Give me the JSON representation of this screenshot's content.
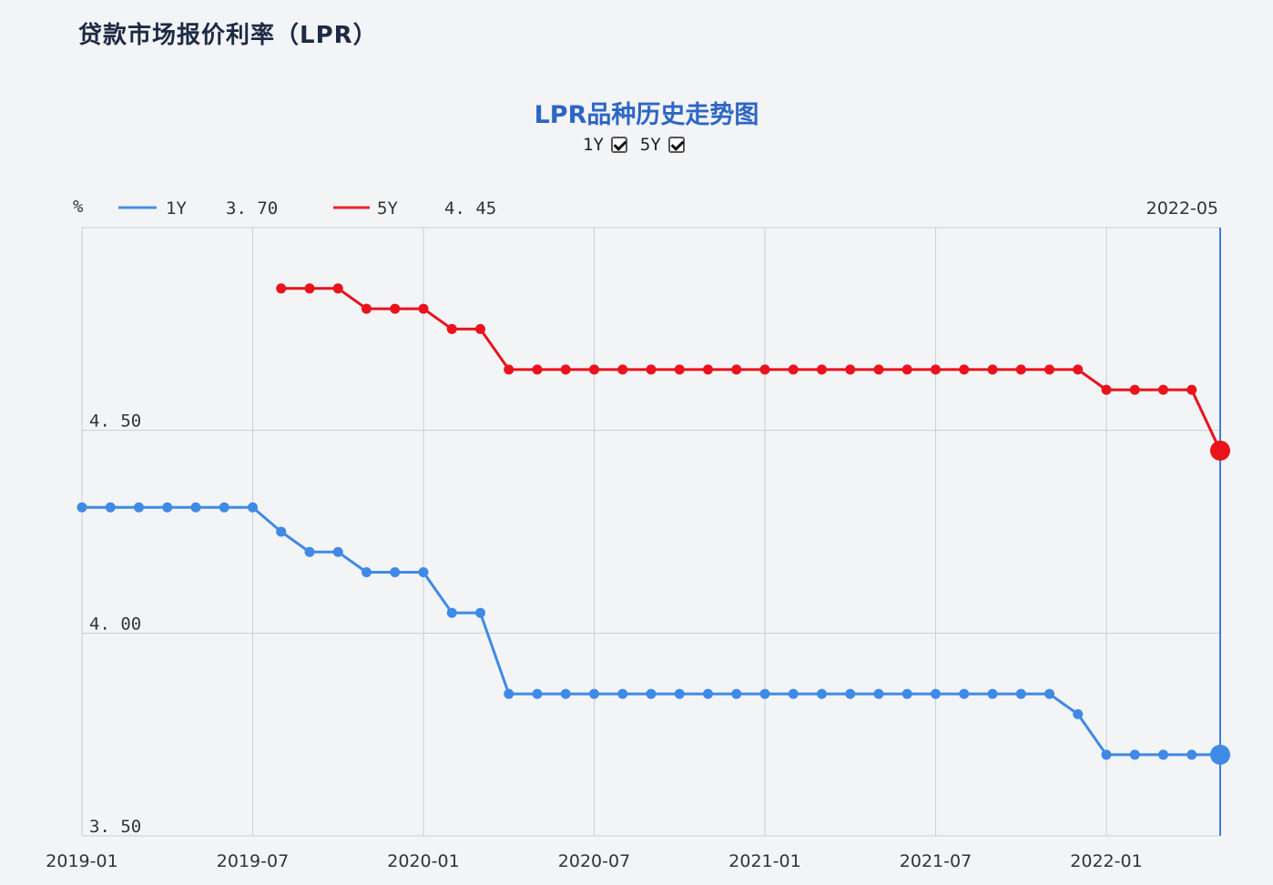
{
  "header": {
    "title": "贷款市场报价利率（LPR）"
  },
  "toggles": [
    {
      "label": "1Y",
      "checked": true
    },
    {
      "label": "5Y",
      "checked": true
    }
  ],
  "legend": {
    "unit": "%",
    "items": [
      {
        "name": "1Y",
        "value": "3. 70",
        "color": "#4a8fe7"
      },
      {
        "name": "5Y",
        "value": "4. 45",
        "color": "#e8242c"
      }
    ],
    "cursor_date": "2022-05"
  },
  "chart_data": {
    "type": "line",
    "title": "LPR品种历史走势图",
    "ylabel": "%",
    "ylim": [
      3.5,
      5.0
    ],
    "yticks": [
      {
        "value": 3.5,
        "label": "3. 50"
      },
      {
        "value": 4.0,
        "label": "4. 00"
      },
      {
        "value": 4.5,
        "label": "4. 50"
      }
    ],
    "xrange": [
      "2019-01",
      "2022-05"
    ],
    "xticks": [
      "2019-01",
      "2019-07",
      "2020-01",
      "2020-07",
      "2021-01",
      "2021-07",
      "2022-01"
    ],
    "grid": true,
    "legend_position": "top-left",
    "series": [
      {
        "name": "1Y",
        "color": "#3f8ae6",
        "x": [
          "2019-01",
          "2019-02",
          "2019-03",
          "2019-04",
          "2019-05",
          "2019-06",
          "2019-07",
          "2019-08",
          "2019-09",
          "2019-10",
          "2019-11",
          "2019-12",
          "2020-01",
          "2020-02",
          "2020-03",
          "2020-04",
          "2020-05",
          "2020-06",
          "2020-07",
          "2020-08",
          "2020-09",
          "2020-10",
          "2020-11",
          "2020-12",
          "2021-01",
          "2021-02",
          "2021-03",
          "2021-04",
          "2021-05",
          "2021-06",
          "2021-07",
          "2021-08",
          "2021-09",
          "2021-10",
          "2021-11",
          "2021-12",
          "2022-01",
          "2022-02",
          "2022-03",
          "2022-04",
          "2022-05"
        ],
        "values": [
          4.31,
          4.31,
          4.31,
          4.31,
          4.31,
          4.31,
          4.31,
          4.25,
          4.2,
          4.2,
          4.15,
          4.15,
          4.15,
          4.05,
          4.05,
          3.85,
          3.85,
          3.85,
          3.85,
          3.85,
          3.85,
          3.85,
          3.85,
          3.85,
          3.85,
          3.85,
          3.85,
          3.85,
          3.85,
          3.85,
          3.85,
          3.85,
          3.85,
          3.85,
          3.85,
          3.8,
          3.7,
          3.7,
          3.7,
          3.7,
          3.7
        ]
      },
      {
        "name": "5Y",
        "color": "#e8131c",
        "x": [
          "2019-08",
          "2019-09",
          "2019-10",
          "2019-11",
          "2019-12",
          "2020-01",
          "2020-02",
          "2020-03",
          "2020-04",
          "2020-05",
          "2020-06",
          "2020-07",
          "2020-08",
          "2020-09",
          "2020-10",
          "2020-11",
          "2020-12",
          "2021-01",
          "2021-02",
          "2021-03",
          "2021-04",
          "2021-05",
          "2021-06",
          "2021-07",
          "2021-08",
          "2021-09",
          "2021-10",
          "2021-11",
          "2021-12",
          "2022-01",
          "2022-02",
          "2022-03",
          "2022-04",
          "2022-05"
        ],
        "values": [
          4.85,
          4.85,
          4.85,
          4.8,
          4.8,
          4.8,
          4.75,
          4.75,
          4.65,
          4.65,
          4.65,
          4.65,
          4.65,
          4.65,
          4.65,
          4.65,
          4.65,
          4.65,
          4.65,
          4.65,
          4.65,
          4.65,
          4.65,
          4.65,
          4.65,
          4.65,
          4.65,
          4.65,
          4.65,
          4.6,
          4.6,
          4.6,
          4.6,
          4.45
        ]
      }
    ]
  }
}
